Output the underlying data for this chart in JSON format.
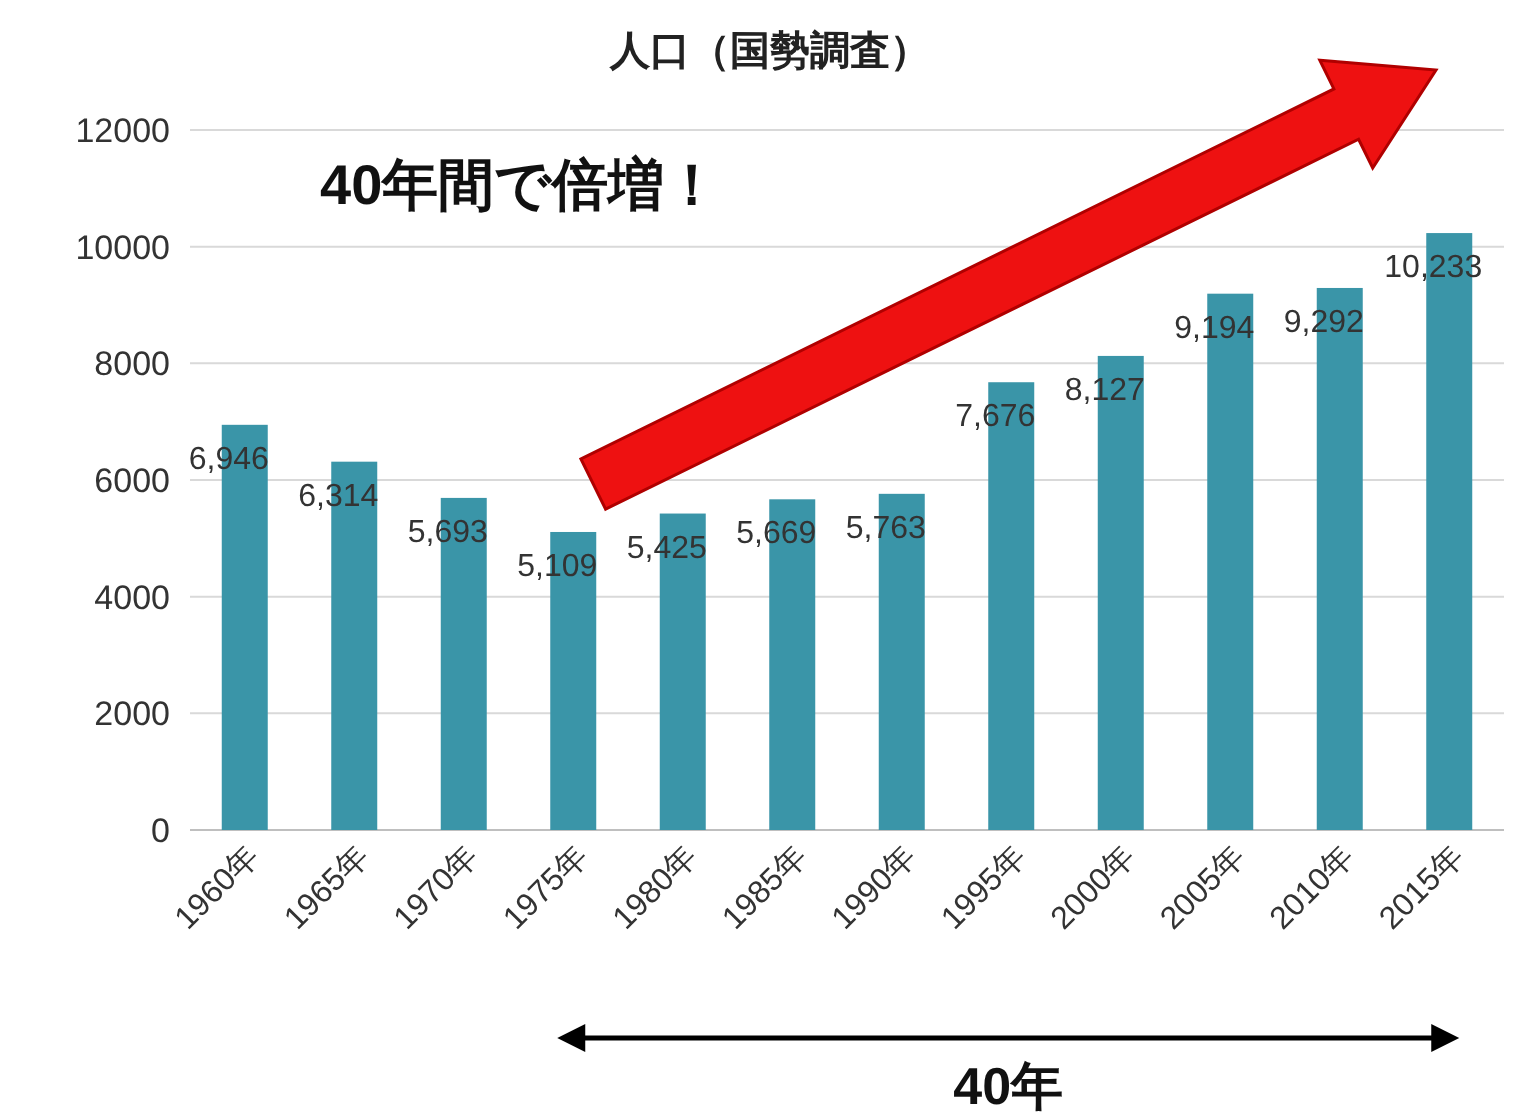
{
  "chart_data": {
    "type": "bar",
    "title": "人口（国勢調査）",
    "categories": [
      "1960年",
      "1965年",
      "1970年",
      "1975年",
      "1980年",
      "1985年",
      "1990年",
      "1995年",
      "2000年",
      "2005年",
      "2010年",
      "2015年"
    ],
    "values": [
      6946,
      6314,
      5693,
      5109,
      5425,
      5669,
      5763,
      7676,
      8127,
      9194,
      9292,
      10233
    ],
    "value_labels": [
      "6,946",
      "6,314",
      "5,693",
      "5,109",
      "5,425",
      "5,669",
      "5,763",
      "7,676",
      "8,127",
      "9,194",
      "9,292",
      "10,233"
    ],
    "color": "#3a95a8",
    "ylim": [
      0,
      12000
    ],
    "yticks": [
      0,
      2000,
      4000,
      6000,
      8000,
      10000,
      12000
    ],
    "grid": "y",
    "annotations": [
      "40年間で倍増！",
      "40年"
    ]
  }
}
